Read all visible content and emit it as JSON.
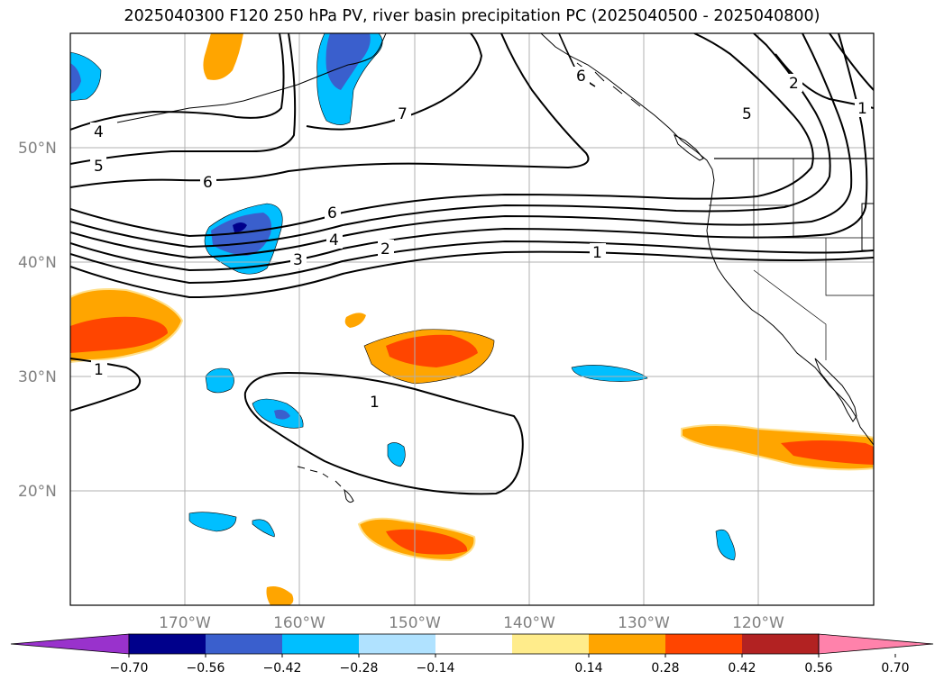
{
  "title": "2025040300 F120 250 hPa PV, river basin precipitation PC (2025040500 - 2025040800)",
  "map": {
    "lat_labels": [
      "50°N",
      "40°N",
      "30°N",
      "20°N"
    ],
    "lon_labels": [
      "170°W",
      "160°W",
      "150°W",
      "140°W",
      "130°W",
      "120°W"
    ],
    "extent": {
      "lon_min": -180,
      "lon_max": -110,
      "lat_min": 10,
      "lat_max": 60
    },
    "grid": true
  },
  "contours": {
    "color": "#000000",
    "labels": [
      "4",
      "5",
      "6",
      "6",
      "4",
      "3",
      "2",
      "1",
      "7",
      "6",
      "2",
      "5",
      "1",
      "1",
      "1"
    ]
  },
  "colorbar": {
    "colors": [
      "#9932cc",
      "#00008b",
      "#3a5fcd",
      "#00bfff",
      "#b0e2ff",
      "#ffffff",
      "#ffec8b",
      "#ffa500",
      "#ff4500",
      "#b22222",
      "#ff82ab"
    ],
    "ticks": [
      "−0.70",
      "−0.56",
      "−0.42",
      "−0.28",
      "−0.14",
      "0.14",
      "0.28",
      "0.42",
      "0.56",
      "0.70"
    ]
  }
}
